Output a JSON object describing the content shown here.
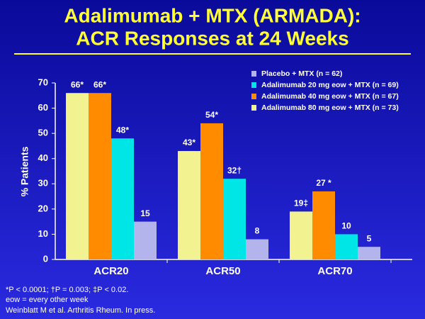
{
  "chart_data": {
    "type": "bar",
    "title": [
      "Adalimumab + MTX (ARMADA):",
      "ACR Responses at 24 Weeks"
    ],
    "y_label": "% Patients",
    "categories": [
      "ACR20",
      "ACR50",
      "ACR70"
    ],
    "series": [
      {
        "name": "Placebo + MTX (n = 62)",
        "color": "#b4b4ec",
        "values": [
          15,
          8,
          5
        ],
        "value_labels": [
          "15",
          "8",
          "5"
        ]
      },
      {
        "name": "Adalimumab 20 mg eow + MTX (n = 69)",
        "color": "#00e6e6",
        "values": [
          48,
          32,
          10
        ],
        "value_labels": [
          "48*",
          "32†",
          "10"
        ]
      },
      {
        "name": "Adalimumab 40 mg eow + MTX (n = 67)",
        "color": "#ff8c00",
        "values": [
          66,
          54,
          27
        ],
        "value_labels": [
          "66*",
          "54*",
          "27 *"
        ]
      },
      {
        "name": "Adalimumab 80 mg eow + MTX (n = 73)",
        "color": "#f2f290",
        "values": [
          66,
          43,
          19
        ],
        "value_labels": [
          "66*",
          "43*",
          "19‡"
        ]
      }
    ],
    "ylim": [
      0,
      70
    ],
    "yticks": [
      0,
      10,
      20,
      30,
      40,
      50,
      60,
      70
    ],
    "legend": "top-right",
    "footnotes": [
      "*P < 0.0001; †P = 0.003; ‡P < 0.02.",
      "eow = every other week",
      "Weinblatt M et al. Arthritis Rheum. In press."
    ]
  }
}
